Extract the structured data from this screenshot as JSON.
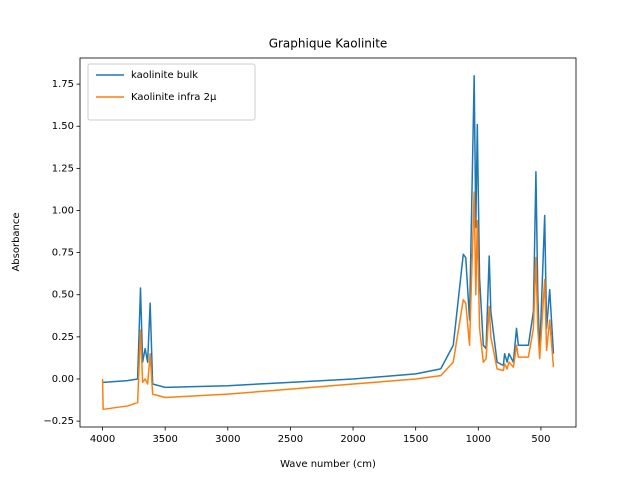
{
  "chart_data": {
    "type": "line",
    "title": "Graphique Kaolinite",
    "x_label": "Wave number (cm)",
    "y_label": "Absorbance",
    "x": [
      4000,
      3995,
      3800,
      3720,
      3697,
      3680,
      3660,
      3640,
      3620,
      3600,
      3500,
      3000,
      2500,
      2000,
      1500,
      1300,
      1200,
      1120,
      1100,
      1070,
      1033,
      1020,
      1008,
      990,
      960,
      938,
      913,
      900,
      850,
      800,
      790,
      770,
      755,
      720,
      695,
      680,
      600,
      560,
      540,
      525,
      510,
      470,
      455,
      430,
      400
    ],
    "series": [
      {
        "name": "kaolinite bulk",
        "color": "#1f77b4",
        "values": [
          -0.02,
          -0.02,
          -0.01,
          0.0,
          0.54,
          0.1,
          0.18,
          0.1,
          0.45,
          -0.03,
          -0.05,
          -0.04,
          -0.02,
          0.0,
          0.03,
          0.06,
          0.2,
          0.74,
          0.72,
          0.35,
          1.8,
          0.9,
          1.51,
          0.6,
          0.2,
          0.18,
          0.73,
          0.4,
          0.1,
          0.08,
          0.15,
          0.1,
          0.15,
          0.1,
          0.3,
          0.2,
          0.2,
          0.4,
          1.23,
          0.5,
          0.15,
          0.97,
          0.3,
          0.53,
          0.15
        ]
      },
      {
        "name": "Kaolinite infra 2µ",
        "color": "#ff7f0e",
        "values": [
          0.0,
          -0.18,
          -0.16,
          -0.14,
          0.29,
          -0.02,
          0.0,
          -0.03,
          0.15,
          -0.09,
          -0.11,
          -0.09,
          -0.06,
          -0.03,
          0.0,
          0.02,
          0.1,
          0.47,
          0.45,
          0.2,
          1.11,
          0.5,
          0.94,
          0.3,
          0.1,
          0.12,
          0.43,
          0.25,
          0.06,
          0.05,
          0.09,
          0.06,
          0.1,
          0.07,
          0.2,
          0.13,
          0.13,
          0.3,
          0.72,
          0.3,
          0.12,
          0.59,
          0.17,
          0.35,
          0.07
        ]
      }
    ],
    "xlim": [
      4180,
      220
    ],
    "ylim": [
      -0.285,
      1.905
    ],
    "xticks": [
      4000,
      3500,
      3000,
      2500,
      2000,
      1500,
      1000,
      500
    ],
    "yticks": [
      {
        "value": -0.25,
        "label": "−0.25"
      },
      {
        "value": 0,
        "label": "0.00"
      },
      {
        "value": 0.25,
        "label": "0.25"
      },
      {
        "value": 0.5,
        "label": "0.50"
      },
      {
        "value": 0.75,
        "label": "0.75"
      },
      {
        "value": 1,
        "label": "1.00"
      },
      {
        "value": 1.25,
        "label": "1.25"
      },
      {
        "value": 1.5,
        "label": "1.50"
      },
      {
        "value": 1.75,
        "label": "1.75"
      }
    ],
    "legend": "upper left"
  }
}
